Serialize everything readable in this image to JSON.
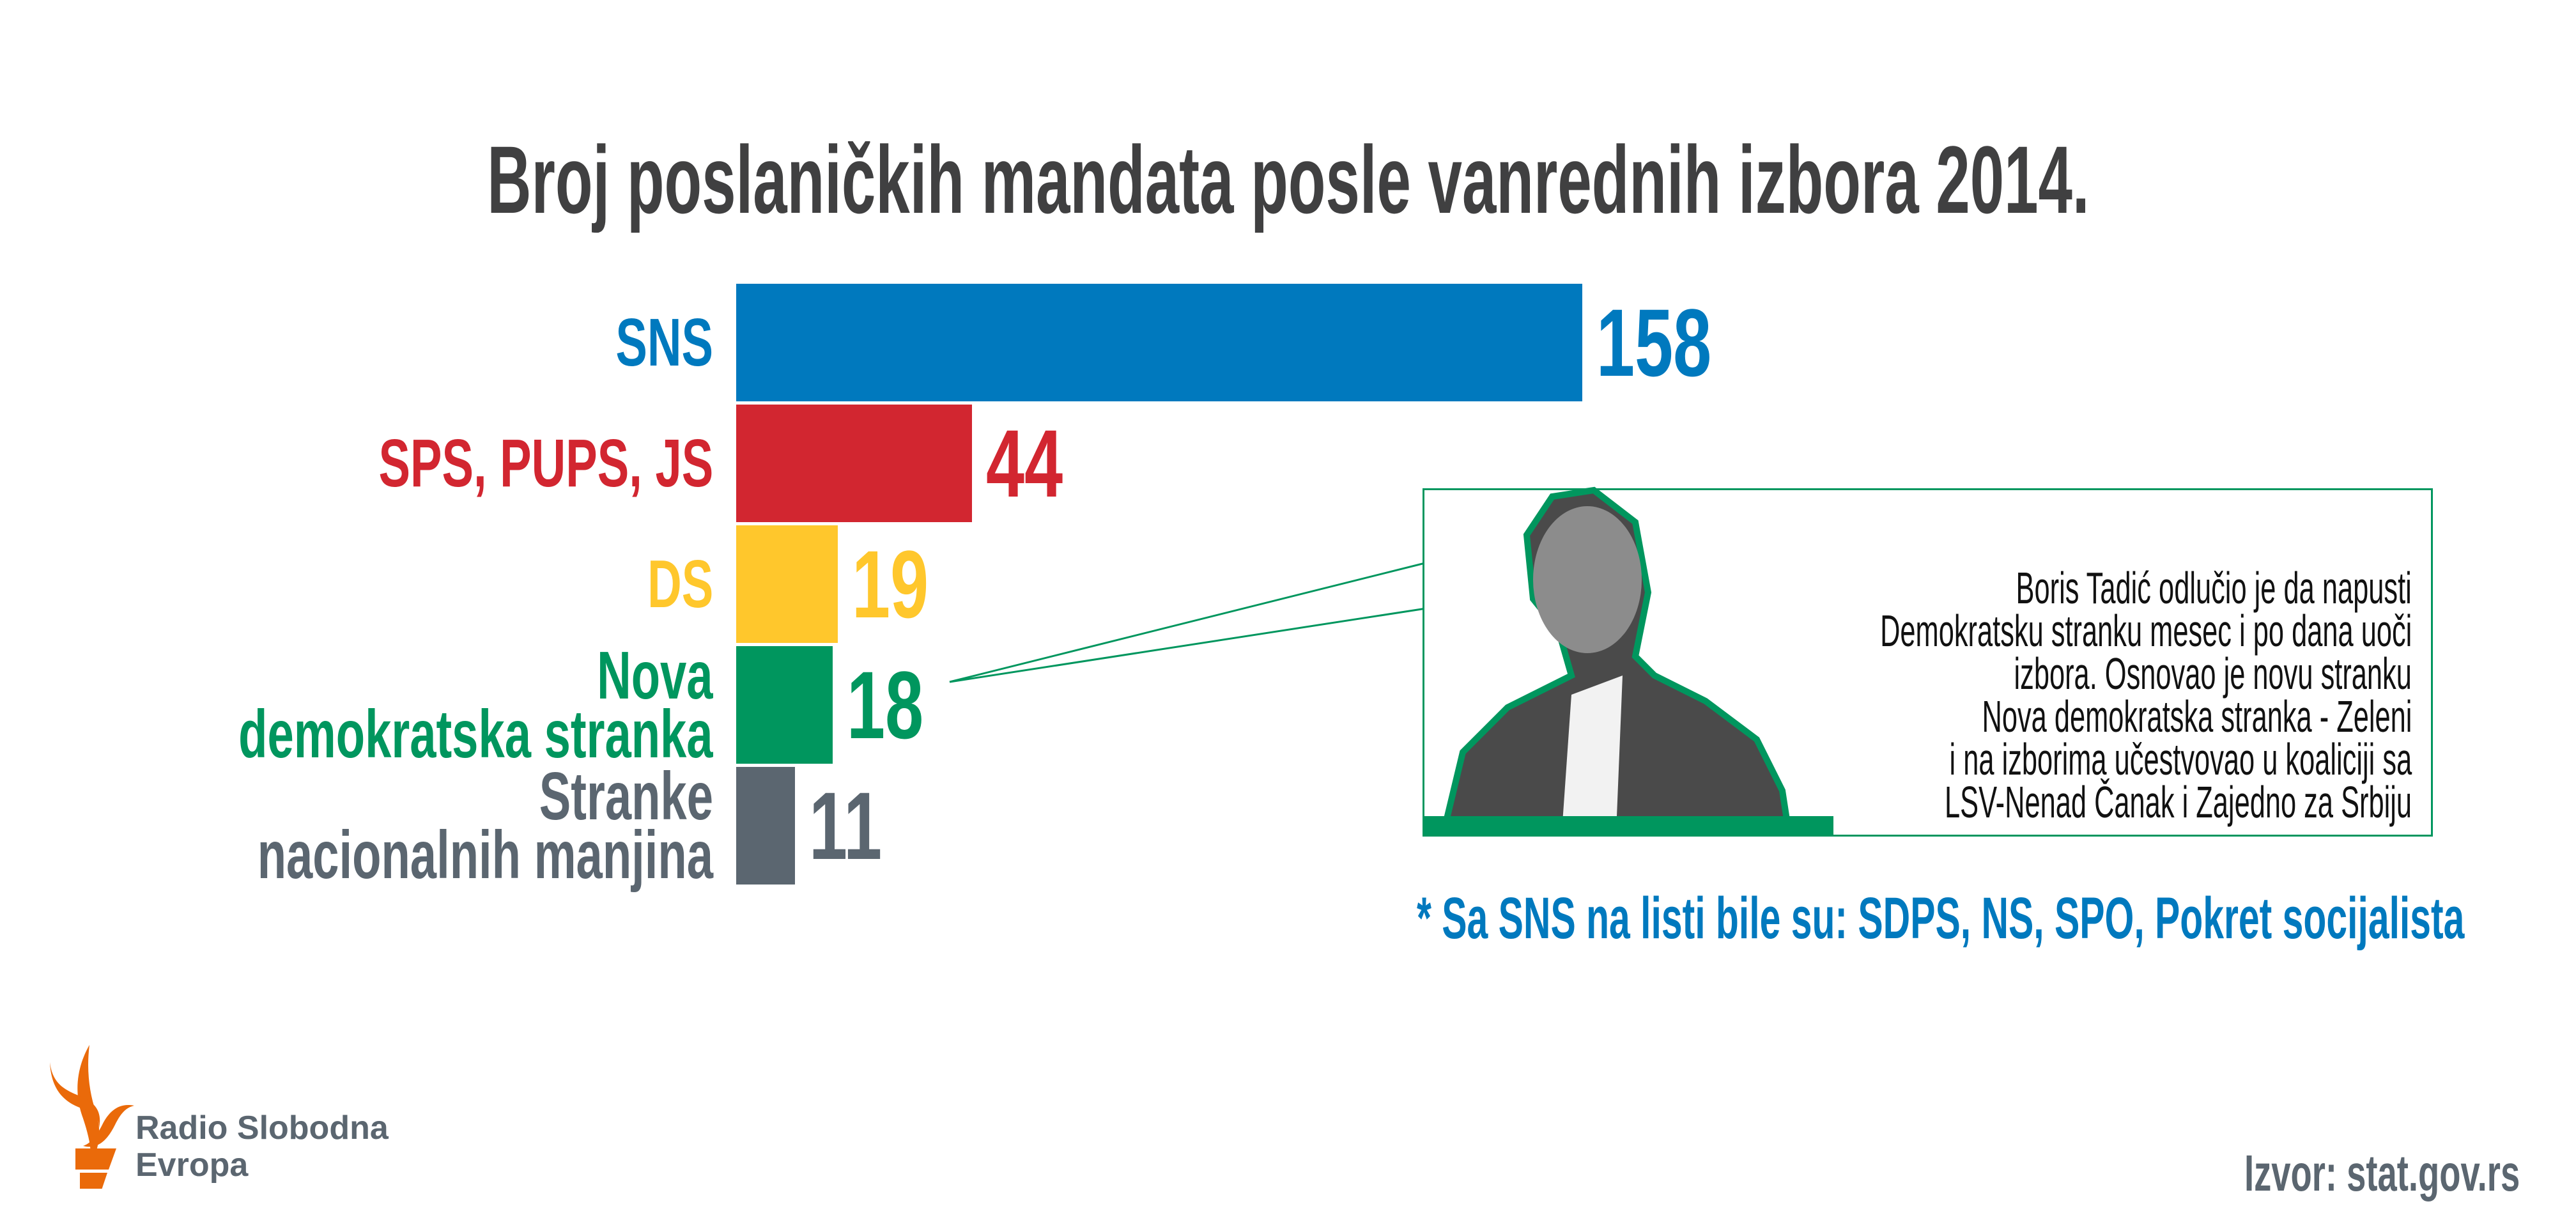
{
  "chart_data": {
    "type": "bar",
    "orientation": "horizontal",
    "title": "Broj poslaničkih mandata posle vanrednih izbora 2014.",
    "categories": [
      [
        "SNS"
      ],
      [
        "SPS, PUPS, JS"
      ],
      [
        "DS"
      ],
      [
        "Nova",
        "demokratska stranka"
      ],
      [
        "Stranke",
        "nacionalnih manjina"
      ]
    ],
    "values": [
      158,
      44,
      19,
      18,
      11
    ],
    "colors": [
      "#0079BE",
      "#D22630",
      "#FFC72C",
      "#00965E",
      "#5B6670"
    ],
    "xlabel": "",
    "ylabel": "",
    "xlim": [
      0,
      158
    ],
    "grid": false
  },
  "callout": {
    "lines": [
      "Boris Tadić odlučio je da napusti",
      "Demokratsku stranku mesec i po dana uoči",
      "izbora. Osnovao je novu stranku",
      "Nova demokratska stranka - Zeleni",
      "i na izborima učestvovao u koaliciji sa",
      "LSV-Nenad Čanak i Zajedno za Srbiju"
    ],
    "accent": "#00965E"
  },
  "footnote": "* Sa SNS na listi bile su: SDPS, NS, SPO, Pokret socijalista",
  "source": "Izvor: stat.gov.rs",
  "logo": {
    "line1": "Radio Slobodna",
    "line2": "Evropa",
    "color": "#EA6A0A"
  }
}
